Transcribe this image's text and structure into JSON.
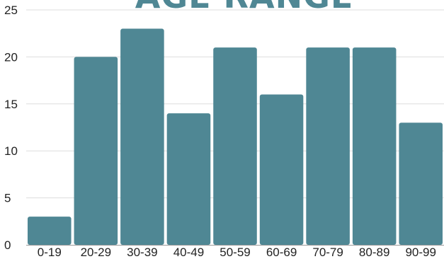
{
  "chart_data": {
    "type": "bar",
    "title": "AGE RANGE",
    "categories": [
      "0-19",
      "20-29",
      "30-39",
      "40-49",
      "50-59",
      "60-69",
      "70-79",
      "80-89",
      "90-99"
    ],
    "values": [
      3,
      20,
      23,
      14,
      21,
      16,
      21,
      21,
      13
    ],
    "y_ticks": [
      "0",
      "5",
      "10",
      "15",
      "20",
      "25"
    ],
    "ylim": [
      0,
      25
    ],
    "grid": true,
    "bar_color": "#4f8794",
    "legend": "none"
  }
}
